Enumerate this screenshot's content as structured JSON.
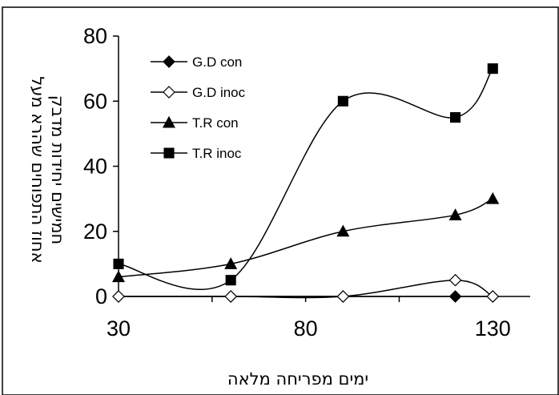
{
  "chart_data": {
    "type": "line",
    "title": "",
    "xlabel": "ימים מפריחה מלאה",
    "ylabel_lines": [
      "אחוז התפוחים שהרא מעל",
      "חמישים יחידות מדבק"
    ],
    "x_ticks": [
      30,
      80,
      130
    ],
    "y_ticks": [
      0,
      20,
      40,
      60,
      80
    ],
    "xlim": [
      30,
      140
    ],
    "ylim": [
      0,
      80
    ],
    "grid": false,
    "legend_position": "top-left",
    "x": [
      30,
      60,
      90,
      120,
      130
    ],
    "series": [
      {
        "name": "G.D con",
        "marker": "diamond",
        "filled": true,
        "values": [
          0,
          0,
          0,
          0,
          0
        ]
      },
      {
        "name": "G.D inoc",
        "marker": "diamond",
        "filled": false,
        "values": [
          0,
          0,
          0,
          5,
          0
        ]
      },
      {
        "name": "T.R con",
        "marker": "triangle",
        "filled": true,
        "values": [
          6,
          10,
          20,
          25,
          30
        ]
      },
      {
        "name": "T.R inoc",
        "marker": "square",
        "filled": true,
        "values": [
          10,
          5,
          60,
          55,
          70
        ]
      }
    ]
  }
}
